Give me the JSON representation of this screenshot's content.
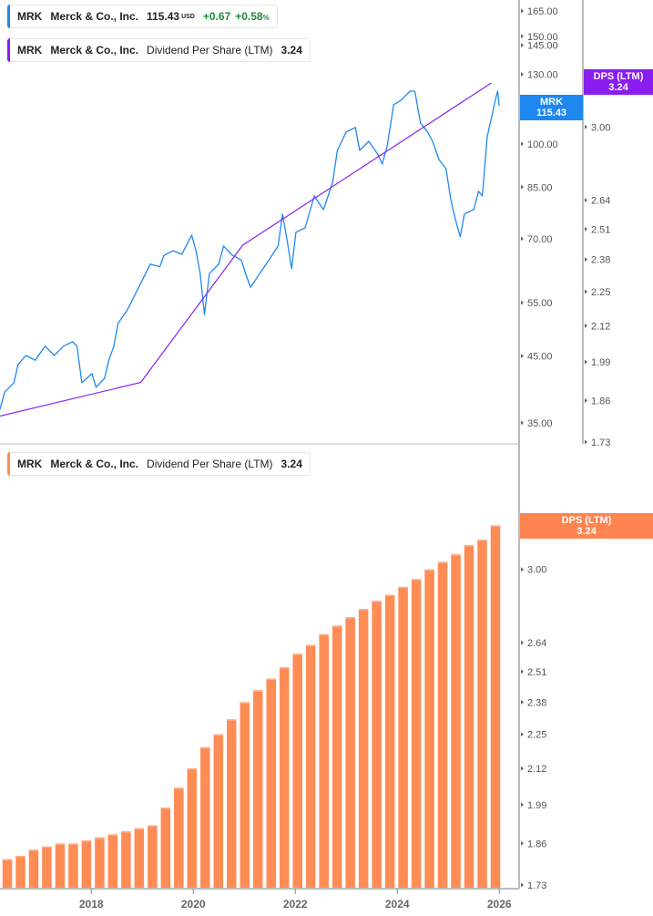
{
  "legends": {
    "price": {
      "ticker": "MRK",
      "name": "Merck & Co., Inc.",
      "price": "115.43",
      "currency": "USD",
      "change": "+0.67",
      "change_pct": "+0.58",
      "pct_sign": "%"
    },
    "dps_top": {
      "ticker": "MRK",
      "name": "Merck & Co., Inc.",
      "metric": "Dividend Per Share (LTM)",
      "value": "3.24"
    },
    "dps_bottom": {
      "ticker": "MRK",
      "name": "Merck & Co., Inc.",
      "metric": "Dividend Per Share (LTM)",
      "value": "3.24"
    }
  },
  "tags": {
    "price": {
      "label": "MRK",
      "value": "115.43"
    },
    "dps_top": {
      "label": "DPS (LTM)",
      "value": "3.24"
    },
    "dps_bottom": {
      "label": "DPS (LTM)",
      "value": "3.24"
    }
  },
  "colors": {
    "price": "#1e88f0",
    "dps_line": "#8a1ef0",
    "bars": "#ff8c55",
    "tag_price": "#1e88f0",
    "tag_dps_top": "#8a1ef0",
    "tag_dps_bottom": "#ff8450",
    "up": "#1e8a3c"
  },
  "chart_data": [
    {
      "type": "line",
      "scale": "log",
      "x_range": [
        "2016-03",
        "2026-02"
      ],
      "ylim": [
        33,
        170
      ],
      "price_ticks": [
        "165.00",
        "150.00",
        "145.00",
        "130.00",
        "100.00",
        "85.00",
        "70.00",
        "55.00",
        "45.00",
        "35.00"
      ],
      "dps_ticks": [
        "3.00",
        "2.64",
        "2.51",
        "2.38",
        "2.25",
        "2.12",
        "1.99",
        "1.86",
        "1.73"
      ],
      "series": [
        {
          "name": "MRK",
          "points": [
            [
              "2016-03-15",
              36.7
            ],
            [
              "2016-04-20",
              39.3
            ],
            [
              "2016-06-25",
              40.7
            ],
            [
              "2016-07-25",
              43.6
            ],
            [
              "2016-09-20",
              45.1
            ],
            [
              "2016-11-25",
              44.3
            ],
            [
              "2017-02-05",
              46.7
            ],
            [
              "2017-04-10",
              45.1
            ],
            [
              "2017-06-15",
              46.7
            ],
            [
              "2017-08-20",
              47.5
            ],
            [
              "2017-09-20",
              46.7
            ],
            [
              "2017-10-25",
              40.7
            ],
            [
              "2018-01-05",
              42.1
            ],
            [
              "2018-02-05",
              40.0
            ],
            [
              "2018-04-05",
              41.4
            ],
            [
              "2018-05-05",
              44.3
            ],
            [
              "2018-06-10",
              46.7
            ],
            [
              "2018-07-10",
              50.9
            ],
            [
              "2018-09-15",
              53.5
            ],
            [
              "2018-11-20",
              57.3
            ],
            [
              "2019-01-25",
              61.4
            ],
            [
              "2019-02-28",
              63.6
            ],
            [
              "2019-05-05",
              63.0
            ],
            [
              "2019-06-05",
              65.8
            ],
            [
              "2019-08-10",
              66.9
            ],
            [
              "2019-10-10",
              66.0
            ],
            [
              "2019-12-20",
              70.9
            ],
            [
              "2020-01-20",
              66.9
            ],
            [
              "2020-02-20",
              61.4
            ],
            [
              "2020-03-20",
              52.6
            ],
            [
              "2020-04-25",
              61.4
            ],
            [
              "2020-07-01",
              63.6
            ],
            [
              "2020-08-05",
              68.1
            ],
            [
              "2020-10-05",
              65.8
            ],
            [
              "2020-12-10",
              64.6
            ],
            [
              "2021-01-10",
              61.4
            ],
            [
              "2021-02-15",
              58.3
            ],
            [
              "2021-04-20",
              61.4
            ],
            [
              "2021-06-25",
              64.6
            ],
            [
              "2021-08-30",
              68.1
            ],
            [
              "2021-10-01",
              76.8
            ],
            [
              "2021-11-05",
              69.2
            ],
            [
              "2021-12-05",
              62.5
            ],
            [
              "2022-01-05",
              71.7
            ],
            [
              "2022-03-10",
              72.9
            ],
            [
              "2022-05-15",
              82.2
            ],
            [
              "2022-07-20",
              78.1
            ],
            [
              "2022-09-25",
              86.6
            ],
            [
              "2022-10-28",
              97.6
            ],
            [
              "2023-01-01",
              104.6
            ],
            [
              "2023-03-05",
              106.4
            ],
            [
              "2023-04-05",
              97.6
            ],
            [
              "2023-06-10",
              101.0
            ],
            [
              "2023-08-15",
              96.0
            ],
            [
              "2023-09-15",
              92.7
            ],
            [
              "2023-10-20",
              99.3
            ],
            [
              "2023-12-05",
              115.9
            ],
            [
              "2024-01-28",
              117.9
            ],
            [
              "2024-04-01",
              122.0
            ],
            [
              "2024-05-05",
              122.0
            ],
            [
              "2024-06-15",
              108.2
            ],
            [
              "2024-08-05",
              104.6
            ],
            [
              "2024-09-10",
              101.0
            ],
            [
              "2024-10-25",
              94.3
            ],
            [
              "2024-12-15",
              91.1
            ],
            [
              "2025-01-20",
              80.8
            ],
            [
              "2025-02-20",
              75.5
            ],
            [
              "2025-03-25",
              70.5
            ],
            [
              "2025-04-25",
              76.8
            ],
            [
              "2025-07-01",
              78.1
            ],
            [
              "2025-08-05",
              83.7
            ],
            [
              "2025-09-01",
              82.2
            ],
            [
              "2025-10-05",
              102.7
            ],
            [
              "2025-11-05",
              110.1
            ],
            [
              "2025-12-10",
              119.9
            ],
            [
              "2025-12-20",
              122.0
            ],
            [
              "2025-12-30",
              115.43
            ]
          ]
        },
        {
          "name": "DPS (LTM)",
          "points": [
            [
              "2016-03-15",
              1.81
            ],
            [
              "2018-12-20",
              1.92
            ],
            [
              "2020-12-20",
              2.44
            ],
            [
              "2025-11-05",
              3.24
            ]
          ]
        }
      ]
    },
    {
      "type": "bar",
      "scale": "log",
      "ylim": [
        1.73,
        3.3
      ],
      "y_ticks": [
        "3.00",
        "2.64",
        "2.51",
        "2.38",
        "2.25",
        "2.12",
        "1.99",
        "1.86",
        "1.73"
      ],
      "x_ticks": [
        "2018",
        "2020",
        "2022",
        "2024",
        "2026"
      ],
      "name": "DPS (LTM)",
      "values": [
        1.81,
        1.82,
        1.84,
        1.85,
        1.86,
        1.86,
        1.87,
        1.88,
        1.89,
        1.9,
        1.91,
        1.92,
        1.98,
        2.05,
        2.12,
        2.2,
        2.25,
        2.31,
        2.38,
        2.43,
        2.48,
        2.53,
        2.59,
        2.63,
        2.68,
        2.72,
        2.76,
        2.8,
        2.84,
        2.87,
        2.91,
        2.95,
        3.0,
        3.04,
        3.08,
        3.13,
        3.16,
        3.24
      ]
    }
  ]
}
